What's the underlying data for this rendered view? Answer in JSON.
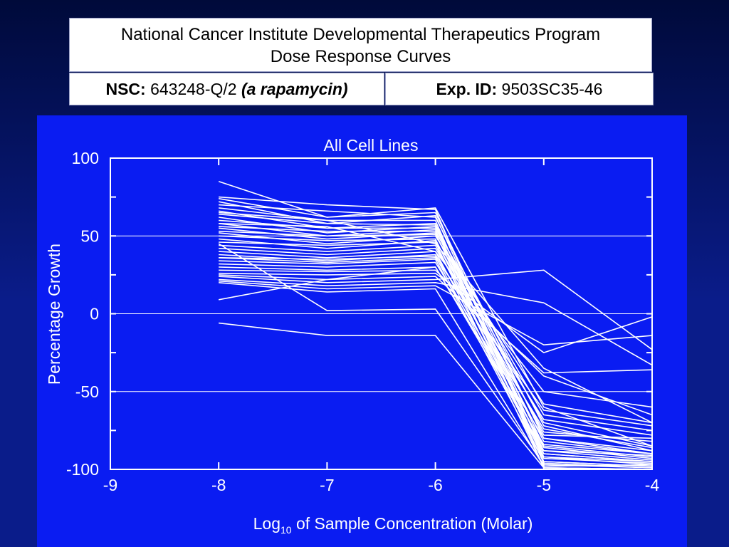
{
  "header": {
    "line1": "National Cancer Institute Developmental Therapeutics Program",
    "line2": "Dose Response Curves",
    "nsc_label": "NSC:",
    "nsc_value": "643248-Q/2",
    "nsc_note": "(a rapamycin)",
    "exp_label": "Exp. ID:",
    "exp_value": "9503SC35-46"
  },
  "colors": {
    "plot_background": "#0a1cf2",
    "page_background": "#0a1c8a",
    "lines": "#ffffff"
  },
  "chart_data": {
    "type": "line",
    "title": "All Cell Lines",
    "xlabel_main": "Log",
    "xlabel_sub": "10",
    "xlabel_rest": " of Sample Concentration (Molar)",
    "ylabel": "Percentage Growth",
    "xlim": [
      -9,
      -4
    ],
    "ylim": [
      -100,
      100
    ],
    "x_ticks": [
      "-9",
      "-8",
      "-7",
      "-6",
      "-5",
      "-4"
    ],
    "y_ticks": [
      "100",
      "50",
      "0",
      "-50",
      "-100"
    ],
    "grid": "horizontal",
    "x": [
      -8,
      -7,
      -6,
      -5,
      -4
    ],
    "series": [
      {
        "values": [
          85,
          62,
          68,
          -60,
          -85
        ]
      },
      {
        "values": [
          75,
          70,
          67,
          -95,
          -98
        ]
      },
      {
        "values": [
          74,
          62,
          65,
          -80,
          -90
        ]
      },
      {
        "values": [
          72,
          58,
          63,
          -90,
          -95
        ]
      },
      {
        "values": [
          70,
          66,
          62,
          -72,
          -88
        ]
      },
      {
        "values": [
          68,
          60,
          60,
          -99,
          -100
        ]
      },
      {
        "values": [
          66,
          55,
          58,
          -85,
          -92
        ]
      },
      {
        "values": [
          64,
          58,
          57,
          -78,
          -80
        ]
      },
      {
        "values": [
          62,
          52,
          56,
          -92,
          -97
        ]
      },
      {
        "values": [
          60,
          55,
          55,
          -65,
          -75
        ]
      },
      {
        "values": [
          58,
          50,
          54,
          -88,
          -94
        ]
      },
      {
        "values": [
          56,
          53,
          53,
          -70,
          -85
        ]
      },
      {
        "values": [
          55,
          48,
          52,
          -96,
          -99
        ]
      },
      {
        "values": [
          53,
          50,
          51,
          -82,
          -90
        ]
      },
      {
        "values": [
          52,
          45,
          50,
          -58,
          -70
        ]
      },
      {
        "values": [
          50,
          47,
          48,
          -93,
          -96
        ]
      },
      {
        "values": [
          48,
          42,
          47,
          -76,
          -82
        ]
      },
      {
        "values": [
          46,
          44,
          46,
          -99,
          -100
        ]
      },
      {
        "values": [
          44,
          40,
          44,
          -86,
          -93
        ]
      },
      {
        "values": [
          42,
          38,
          42,
          -68,
          -78
        ]
      },
      {
        "values": [
          40,
          36,
          40,
          -90,
          -95
        ]
      },
      {
        "values": [
          38,
          34,
          38,
          -74,
          -86
        ]
      },
      {
        "values": [
          36,
          33,
          36,
          -62,
          -72
        ]
      },
      {
        "values": [
          34,
          32,
          35,
          -95,
          -98
        ]
      },
      {
        "values": [
          32,
          30,
          33,
          -80,
          -88
        ]
      },
      {
        "values": [
          30,
          28,
          30,
          -88,
          -91
        ]
      },
      {
        "values": [
          28,
          27,
          28,
          -40,
          -65
        ]
      },
      {
        "values": [
          26,
          25,
          26,
          -25,
          -2
        ]
      },
      {
        "values": [
          25,
          22,
          24,
          -38,
          -36
        ]
      },
      {
        "values": [
          24,
          20,
          22,
          28,
          -23
        ]
      },
      {
        "values": [
          22,
          18,
          20,
          7,
          -33
        ]
      },
      {
        "values": [
          21,
          16,
          18,
          -20,
          -14
        ]
      },
      {
        "values": [
          20,
          14,
          16,
          -98,
          -97
        ]
      },
      {
        "values": [
          9,
          22,
          30,
          -84,
          -90
        ]
      },
      {
        "values": [
          45,
          2,
          3,
          -97,
          -99
        ]
      },
      {
        "values": [
          -6,
          -14,
          -14,
          -99,
          -100
        ]
      },
      {
        "values": [
          36,
          35,
          37,
          -92,
          -95
        ]
      },
      {
        "values": [
          58,
          56,
          40,
          -50,
          -60
        ]
      },
      {
        "values": [
          65,
          60,
          45,
          -35,
          -70
        ]
      }
    ]
  }
}
